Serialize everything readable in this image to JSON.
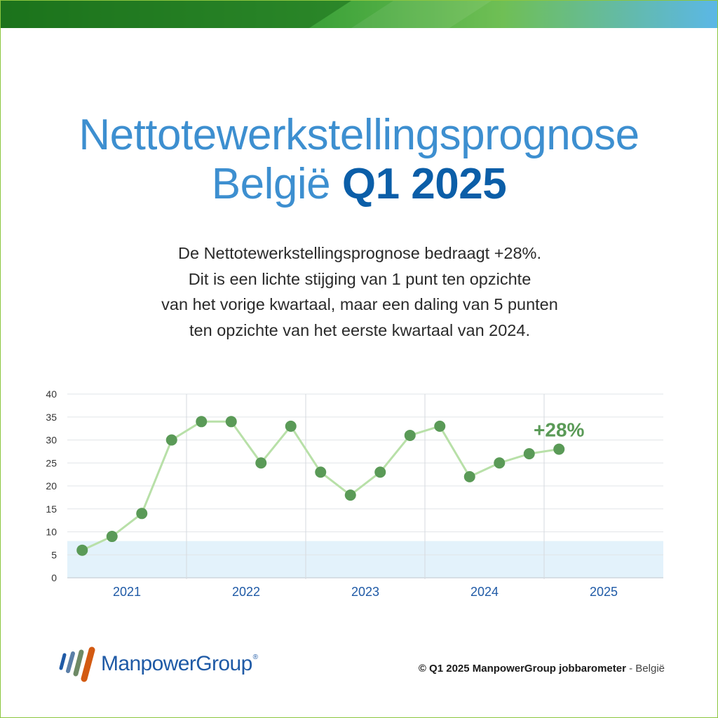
{
  "title": {
    "line1": "Nettotewerkstellingsprognose",
    "country": "België",
    "period": "Q1 2025"
  },
  "description": [
    "De Nettotewerkstellingsprognose bedraagt +28%.",
    "Dit is een lichte stijging van 1 punt ten opzichte",
    "van het vorige kwartaal, maar een daling van 5 punten",
    "ten opzichte van het eerste kwartaal van 2024."
  ],
  "colors": {
    "title_light": "#3d8fd0",
    "title_dark": "#0b5ea8",
    "line": "#b8e0a8",
    "marker": "#5a9a57",
    "callout": "#5a9a57",
    "band": "#e3f2fb",
    "year_label": "#1f5aa6"
  },
  "chart_data": {
    "type": "line",
    "years": [
      "2021",
      "2022",
      "2023",
      "2024",
      "2025"
    ],
    "quarters_per_year": 4,
    "values": [
      6,
      9,
      14,
      30,
      34,
      34,
      25,
      33,
      23,
      18,
      23,
      31,
      33,
      22,
      25,
      27,
      28
    ],
    "ylim": [
      0,
      40
    ],
    "yticks": [
      0,
      5,
      10,
      15,
      20,
      25,
      30,
      35,
      40
    ],
    "highlight_band": [
      0,
      8
    ],
    "grid": true,
    "annotation": "+28%",
    "marker": "circle"
  },
  "logo": {
    "name": "ManpowerGroup",
    "mark": "®"
  },
  "footer": {
    "copyright": "© Q1 2025 ManpowerGroup jobbarometer",
    "separator": " - ",
    "country": "België"
  }
}
